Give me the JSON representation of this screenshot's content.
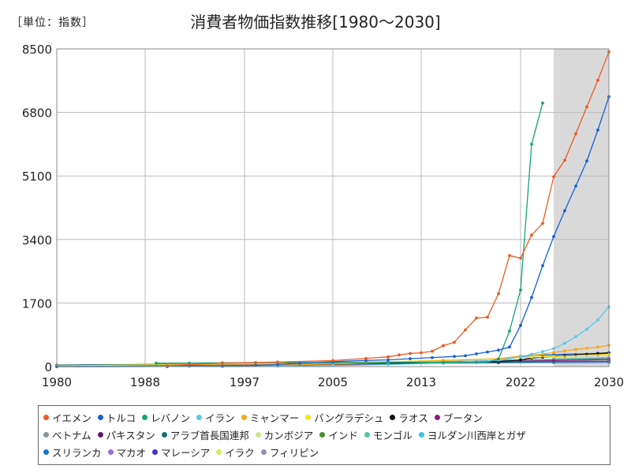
{
  "header": {
    "unit_label": "［単位：指数］",
    "title": "消費者物価指数推移[1980～2030]"
  },
  "chart_data": {
    "type": "line",
    "xlim": [
      1980,
      2030
    ],
    "ylim": [
      0,
      8500
    ],
    "x_ticks": [
      "1980",
      "1988",
      "1997",
      "2005",
      "2013",
      "2022",
      "2030"
    ],
    "x_tick_values": [
      1980,
      1988,
      1997,
      2005,
      2013,
      2022,
      2030
    ],
    "y_ticks": [
      "0",
      "1700",
      "3400",
      "5100",
      "6800",
      "8500"
    ],
    "y_tick_values": [
      0,
      1700,
      3400,
      5100,
      6800,
      8500
    ],
    "grid": true,
    "forecast_shade": [
      2025,
      2030
    ],
    "shade_color": "#d9d9d9",
    "legend_position": "bottom",
    "series": [
      {
        "name": "イエメン",
        "color": "#ed5a1e",
        "x": [
          1990,
          1995,
          2000,
          2005,
          2008,
          2010,
          2011,
          2012,
          2013,
          2014,
          2015,
          2016,
          2017,
          2018,
          2019,
          2020,
          2021,
          2022,
          2023,
          2024,
          2025,
          2026,
          2027,
          2028,
          2029,
          2030
        ],
        "y": [
          30,
          90,
          120,
          160,
          220,
          260,
          310,
          350,
          370,
          410,
          560,
          650,
          980,
          1300,
          1320,
          1950,
          2970,
          2900,
          3520,
          3830,
          5080,
          5520,
          6230,
          6950,
          7660,
          8420
        ]
      },
      {
        "name": "トルコ",
        "color": "#1560d8",
        "x": [
          1980,
          1990,
          1995,
          1998,
          2000,
          2002,
          2005,
          2008,
          2010,
          2012,
          2014,
          2016,
          2017,
          2018,
          2019,
          2020,
          2021,
          2022,
          2023,
          2024,
          2025,
          2026,
          2027,
          2028,
          2029,
          2030
        ],
        "y": [
          1,
          2,
          10,
          30,
          55,
          90,
          130,
          165,
          180,
          210,
          240,
          270,
          290,
          340,
          390,
          440,
          520,
          1100,
          1850,
          2700,
          3480,
          4170,
          4830,
          5500,
          6330,
          7220
        ]
      },
      {
        "name": "レバノン",
        "color": "#17a27a",
        "x": [
          1989,
          1992,
          1995,
          1998,
          2001,
          2005,
          2010,
          2015,
          2018,
          2019,
          2020,
          2021,
          2022,
          2023,
          2024
        ],
        "y": [
          90,
          95,
          100,
          105,
          105,
          110,
          115,
          110,
          115,
          120,
          200,
          950,
          2050,
          5950,
          7050
        ]
      },
      {
        "name": "イラン",
        "color": "#5cc8ea",
        "x": [
          1980,
          1990,
          1995,
          2000,
          2005,
          2010,
          2015,
          2020,
          2022,
          2023,
          2024,
          2025,
          2026,
          2027,
          2028,
          2029,
          2030
        ],
        "y": [
          1,
          2,
          5,
          12,
          25,
          55,
          90,
          170,
          260,
          330,
          400,
          480,
          620,
          800,
          1000,
          1250,
          1600
        ]
      },
      {
        "name": "ミャンマー",
        "color": "#f5a818",
        "x": [
          1980,
          1990,
          1995,
          2000,
          2005,
          2010,
          2015,
          2020,
          2022,
          2024,
          2025,
          2026,
          2027,
          2028,
          2029,
          2030
        ],
        "y": [
          3,
          8,
          20,
          40,
          70,
          110,
          160,
          210,
          280,
          330,
          380,
          420,
          460,
          490,
          520,
          570
        ]
      },
      {
        "name": "バングラデシュ",
        "color": "#f3e418",
        "x": [
          1980,
          1990,
          2000,
          2010,
          2015,
          2020,
          2023,
          2025,
          2030
        ],
        "y": [
          20,
          50,
          80,
          130,
          170,
          210,
          250,
          270,
          330
        ]
      },
      {
        "name": "ラオス",
        "color": "#111111",
        "x": [
          1980,
          1990,
          2000,
          2010,
          2015,
          2020,
          2022,
          2023,
          2024,
          2025,
          2026,
          2027,
          2028,
          2029,
          2030
        ],
        "y": [
          1,
          3,
          40,
          90,
          110,
          130,
          180,
          230,
          250,
          270,
          290,
          310,
          330,
          350,
          370
        ]
      },
      {
        "name": "ブータン",
        "color": "#8a1f8c",
        "x": [
          1980,
          1990,
          2000,
          2010,
          2020,
          2025,
          2030
        ],
        "y": [
          10,
          25,
          45,
          80,
          130,
          160,
          190
        ]
      },
      {
        "name": "ベトナム",
        "color": "#8593a1",
        "x": [
          1980,
          1990,
          2000,
          2010,
          2020,
          2025,
          2030
        ],
        "y": [
          1,
          20,
          50,
          90,
          150,
          180,
          210
        ]
      },
      {
        "name": "パキスタン",
        "color": "#5a1a6e",
        "x": [
          1980,
          1990,
          2000,
          2010,
          2015,
          2020,
          2022,
          2023,
          2024,
          2025,
          2026,
          2027,
          2028,
          2029,
          2030
        ],
        "y": [
          5,
          15,
          35,
          80,
          110,
          140,
          170,
          230,
          260,
          280,
          300,
          310,
          320,
          330,
          340
        ]
      },
      {
        "name": "アラブ首長国連邦",
        "color": "#16716e",
        "x": [
          1980,
          1990,
          2000,
          2010,
          2020,
          2025,
          2030
        ],
        "y": [
          40,
          60,
          80,
          110,
          120,
          130,
          140
        ]
      },
      {
        "name": "カンボジア",
        "color": "#c8e88a",
        "x": [
          1995,
          2000,
          2010,
          2020,
          2025,
          2030
        ],
        "y": [
          60,
          80,
          110,
          140,
          160,
          180
        ]
      },
      {
        "name": "インド",
        "color": "#4b8e24",
        "x": [
          1980,
          1990,
          2000,
          2010,
          2020,
          2025,
          2030
        ],
        "y": [
          10,
          25,
          50,
          90,
          150,
          180,
          210
        ]
      },
      {
        "name": "モンゴル",
        "color": "#52c4a8",
        "x": [
          1992,
          1995,
          2000,
          2010,
          2020,
          2025,
          2030
        ],
        "y": [
          5,
          20,
          40,
          90,
          160,
          200,
          240
        ]
      },
      {
        "name": "ヨルダン川西岸とガザ",
        "color": "#3cc0e0",
        "x": [
          1996,
          2000,
          2010,
          2020,
          2025,
          2030
        ],
        "y": [
          60,
          70,
          90,
          110,
          120,
          130
        ]
      },
      {
        "name": "スリランカ",
        "color": "#1f6fd0",
        "x": [
          1980,
          1990,
          2000,
          2010,
          2020,
          2022,
          2023,
          2025,
          2030
        ],
        "y": [
          5,
          20,
          50,
          100,
          160,
          260,
          300,
          320,
          360
        ]
      },
      {
        "name": "マカオ",
        "color": "#9a6ad8",
        "x": [
          1982,
          1990,
          2000,
          2010,
          2020,
          2025,
          2030
        ],
        "y": [
          20,
          40,
          55,
          80,
          110,
          115,
          125
        ]
      },
      {
        "name": "マレーシア",
        "color": "#4b2ec4",
        "x": [
          1980,
          1990,
          2000,
          2010,
          2020,
          2025,
          2030
        ],
        "y": [
          40,
          55,
          70,
          85,
          100,
          108,
          115
        ]
      },
      {
        "name": "イラク",
        "color": "#dbe86a",
        "x": [
          1980,
          1990,
          2000,
          2005,
          2010,
          2020,
          2025,
          2030
        ],
        "y": [
          1,
          3,
          10,
          40,
          80,
          110,
          125,
          140
        ]
      },
      {
        "name": "フィリピン",
        "color": "#8e8eb8",
        "x": [
          1980,
          1990,
          2000,
          2010,
          2020,
          2025,
          2030
        ],
        "y": [
          15,
          35,
          60,
          90,
          120,
          135,
          150
        ]
      }
    ]
  }
}
